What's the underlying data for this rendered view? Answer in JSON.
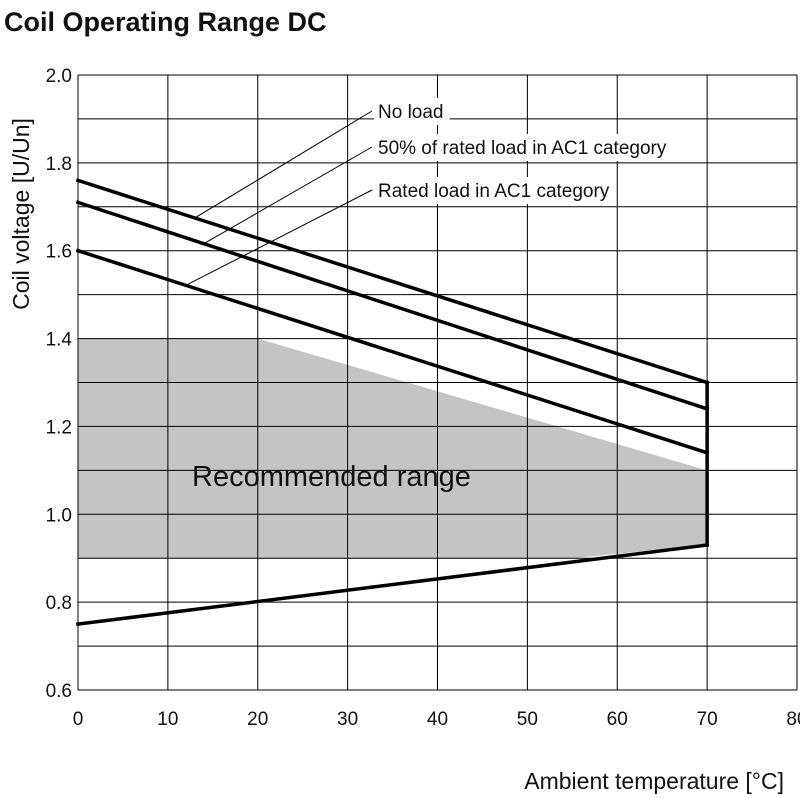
{
  "chart_data": {
    "type": "line",
    "title": "Coil Operating Range DC",
    "xlabel": "Ambient temperature [°C]",
    "ylabel": "Coil voltage [U/Un]",
    "xlim": [
      0,
      80
    ],
    "ylim": [
      0.6,
      2.0
    ],
    "x_ticks": [
      "0",
      "10",
      "20",
      "30",
      "40",
      "50",
      "60",
      "70",
      "80"
    ],
    "y_ticks": [
      "0.6",
      "0.8",
      "1.0",
      "1.2",
      "1.4",
      "1.6",
      "1.8",
      "2.0"
    ],
    "grid": true,
    "series": [
      {
        "name": "No load",
        "x": [
          0,
          70
        ],
        "y": [
          1.76,
          1.3
        ]
      },
      {
        "name": "50% of rated load in AC1 category",
        "x": [
          0,
          70
        ],
        "y": [
          1.71,
          1.24
        ]
      },
      {
        "name": "Rated load in AC1 category",
        "x": [
          0,
          70
        ],
        "y": [
          1.6,
          1.14
        ]
      },
      {
        "name": "",
        "x": [
          0,
          70
        ],
        "y": [
          0.75,
          0.93
        ]
      },
      {
        "name": "",
        "x": [
          70,
          70
        ],
        "y": [
          0.93,
          1.3
        ]
      }
    ],
    "region": {
      "label": "Recommended range",
      "color": "#c4c4c4",
      "polygon": [
        [
          0,
          1.4
        ],
        [
          20,
          1.4
        ],
        [
          70,
          1.1
        ],
        [
          70,
          0.93
        ],
        [
          55,
          0.9
        ],
        [
          0,
          0.9
        ]
      ]
    }
  }
}
